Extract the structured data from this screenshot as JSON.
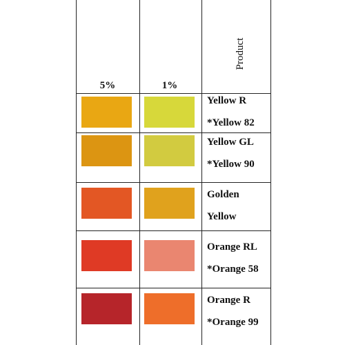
{
  "header": {
    "col_5pct": "5%",
    "col_1pct": "1%",
    "col_product": "Product"
  },
  "rows": [
    {
      "line1": "Yellow R",
      "line2": "*Yellow  82",
      "color_5pct": "#e9a713",
      "color_1pct": "#d7d83a"
    },
    {
      "line1": "Yellow GL",
      "line2": "*Yellow  90",
      "color_5pct": "#dc9512",
      "color_1pct": "#d2cb40"
    },
    {
      "line1": "Golden",
      "line2": "Yellow",
      "color_5pct": "#e35724",
      "color_1pct": "#e0a21d"
    },
    {
      "line1": "Orange RL",
      "line2": "*Orange 58",
      "color_5pct": "#df3a25",
      "color_1pct": "#ea8670"
    },
    {
      "line1": "Orange R",
      "line2": "*Orange 99",
      "color_5pct": "#b6252a",
      "color_1pct": "#ee6e2a"
    }
  ]
}
